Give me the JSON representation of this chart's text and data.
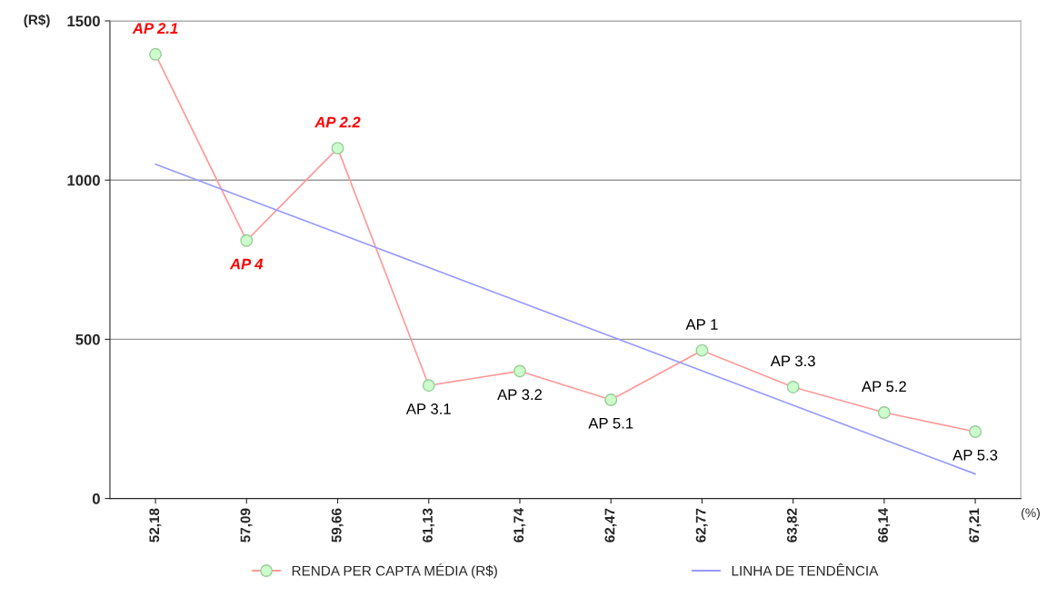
{
  "chart_data": {
    "type": "line",
    "ylabel": "(R$)",
    "xlabel": "(%)",
    "categories": [
      "52,18",
      "57,09",
      "59,66",
      "61,13",
      "61,74",
      "62,47",
      "62,77",
      "63,82",
      "66,14",
      "67,21"
    ],
    "series": [
      {
        "name": "RENDA PER CAPTA MÉDIA (R$)",
        "color": "#ff9999",
        "marker": "circle",
        "values": [
          1395,
          810,
          1100,
          355,
          400,
          310,
          465,
          350,
          270,
          210
        ]
      },
      {
        "name": "LINHA DE TENDÊNCIA",
        "type": "line",
        "color": "#9999ff",
        "marker": "none",
        "x": [
          "52,18",
          "67,21"
        ],
        "values": [
          1050,
          77
        ]
      }
    ],
    "ylim": [
      0,
      1500
    ],
    "yticks": [
      0,
      500,
      1000,
      1500
    ],
    "grid": "y",
    "legend": "bottom",
    "annotations": [
      {
        "text": "AP 2.1",
        "x": "52,18",
        "y": 1395
      },
      {
        "text": "AP 4",
        "x": "57,09",
        "y": 810
      },
      {
        "text": "AP 2.2",
        "x": "59,66",
        "y": 1100
      },
      {
        "text": "AP 3.1",
        "x": "61,13",
        "y": 355
      },
      {
        "text": "AP 3.2",
        "x": "61,74",
        "y": 400
      },
      {
        "text": "AP 5.1",
        "x": "62,47",
        "y": 310
      },
      {
        "text": "AP 1",
        "x": "62,77",
        "y": 465
      },
      {
        "text": "AP 3.3",
        "x": "63,82",
        "y": 350
      },
      {
        "text": "AP 5.2",
        "x": "66,14",
        "y": 270
      },
      {
        "text": "AP 5.3",
        "x": "67,21",
        "y": 210
      }
    ]
  }
}
